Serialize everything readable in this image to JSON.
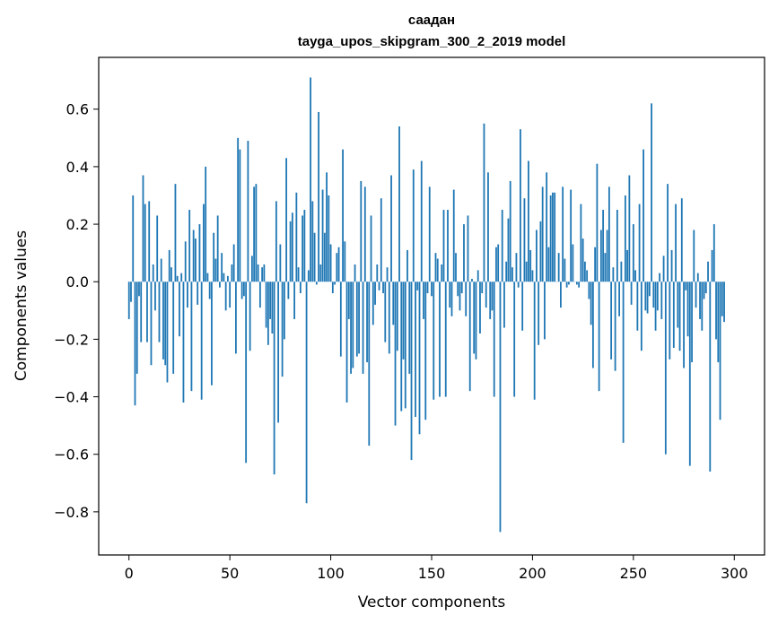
{
  "chart_data": {
    "type": "bar",
    "title": "саадан",
    "subtitle": "tayga_upos_skipgram_300_2_2019 model",
    "xlabel": "Vector components",
    "ylabel": "Components values",
    "xlim": [
      -15,
      315
    ],
    "ylim": [
      -0.95,
      0.78
    ],
    "xticks": [
      0,
      50,
      100,
      150,
      200,
      250,
      300
    ],
    "xtick_labels": [
      "0",
      "50",
      "100",
      "150",
      "200",
      "250",
      "300"
    ],
    "yticks": [
      -0.8,
      -0.6,
      -0.4,
      -0.2,
      0.0,
      0.2,
      0.4,
      0.6
    ],
    "ytick_labels": [
      "−0.8",
      "−0.6",
      "−0.4",
      "−0.2",
      "0.0",
      "0.2",
      "0.4",
      "0.6"
    ],
    "bar_color": "#1f77b4",
    "grid": false,
    "values": [
      -0.13,
      -0.07,
      0.3,
      -0.43,
      -0.32,
      -0.05,
      -0.21,
      0.37,
      0.27,
      -0.21,
      0.28,
      -0.29,
      0.06,
      -0.1,
      0.23,
      -0.21,
      0.08,
      -0.27,
      -0.29,
      -0.35,
      0.11,
      0.05,
      -0.32,
      0.34,
      0.02,
      -0.19,
      0.03,
      -0.42,
      0.14,
      -0.09,
      0.25,
      -0.38,
      0.18,
      0.15,
      -0.08,
      0.2,
      -0.41,
      0.27,
      0.4,
      0.03,
      -0.06,
      -0.36,
      0.17,
      0.08,
      0.23,
      -0.02,
      0.1,
      0.03,
      -0.1,
      0.02,
      -0.09,
      0.06,
      0.13,
      -0.25,
      0.5,
      0.46,
      -0.06,
      -0.05,
      -0.63,
      0.49,
      -0.24,
      0.09,
      0.33,
      0.34,
      0.06,
      -0.09,
      0.05,
      0.06,
      -0.16,
      -0.22,
      -0.13,
      -0.18,
      -0.67,
      0.28,
      -0.49,
      0.13,
      -0.33,
      -0.2,
      0.43,
      -0.06,
      0.21,
      0.24,
      -0.13,
      0.31,
      0.05,
      -0.04,
      0.23,
      0.25,
      -0.77,
      0.04,
      0.71,
      0.28,
      0.17,
      -0.01,
      0.59,
      0.06,
      0.32,
      0.17,
      0.38,
      0.3,
      0.13,
      -0.04,
      -0.01,
      0.1,
      0.12,
      -0.26,
      0.46,
      0.14,
      -0.42,
      -0.13,
      -0.32,
      -0.3,
      0.06,
      -0.26,
      -0.25,
      0.35,
      -0.32,
      0.33,
      -0.28,
      -0.57,
      0.23,
      -0.15,
      -0.08,
      0.06,
      -0.03,
      0.29,
      -0.04,
      -0.21,
      0.05,
      -0.25,
      0.37,
      -0.15,
      -0.5,
      -0.24,
      0.54,
      -0.45,
      -0.27,
      -0.44,
      0.11,
      -0.32,
      -0.62,
      0.39,
      -0.47,
      -0.03,
      -0.53,
      0.42,
      -0.13,
      -0.48,
      -0.04,
      0.33,
      -0.05,
      -0.41,
      0.1,
      0.08,
      -0.4,
      0.06,
      0.25,
      -0.4,
      0.25,
      -0.09,
      -0.12,
      0.32,
      0.1,
      -0.05,
      -0.1,
      -0.04,
      0.2,
      -0.12,
      0.23,
      -0.38,
      0.01,
      -0.25,
      -0.27,
      0.04,
      -0.18,
      -0.04,
      0.55,
      -0.09,
      0.38,
      -0.13,
      -0.1,
      -0.4,
      0.12,
      0.13,
      -0.87,
      0.25,
      -0.16,
      0.07,
      0.22,
      0.35,
      0.05,
      -0.4,
      0.1,
      -0.02,
      0.53,
      -0.17,
      0.29,
      0.07,
      0.42,
      0.11,
      0.04,
      -0.41,
      0.18,
      -0.22,
      0.21,
      0.33,
      -0.2,
      0.38,
      0.12,
      0.3,
      0.31,
      0.31,
      0.0,
      0.1,
      -0.09,
      0.33,
      0.08,
      -0.02,
      -0.01,
      0.32,
      0.13,
      0.0,
      -0.01,
      -0.02,
      0.27,
      0.15,
      0.07,
      0.04,
      -0.06,
      -0.15,
      -0.3,
      0.12,
      0.41,
      -0.38,
      0.18,
      0.25,
      0.1,
      0.18,
      0.33,
      -0.27,
      0.05,
      -0.31,
      0.25,
      -0.12,
      0.07,
      -0.56,
      0.3,
      0.11,
      0.37,
      -0.08,
      0.2,
      0.04,
      -0.17,
      0.27,
      -0.24,
      0.46,
      -0.1,
      -0.11,
      -0.05,
      0.62,
      -0.09,
      -0.17,
      -0.1,
      0.03,
      -0.13,
      0.09,
      -0.6,
      0.34,
      -0.27,
      0.11,
      -0.23,
      0.27,
      -0.16,
      -0.24,
      0.29,
      -0.3,
      -0.03,
      -0.19,
      -0.64,
      -0.28,
      0.18,
      -0.09,
      0.03,
      -0.13,
      -0.17,
      -0.06,
      -0.04,
      0.07,
      -0.66,
      0.11,
      0.2,
      -0.2,
      -0.28,
      -0.48,
      -0.12,
      -0.14
    ]
  }
}
